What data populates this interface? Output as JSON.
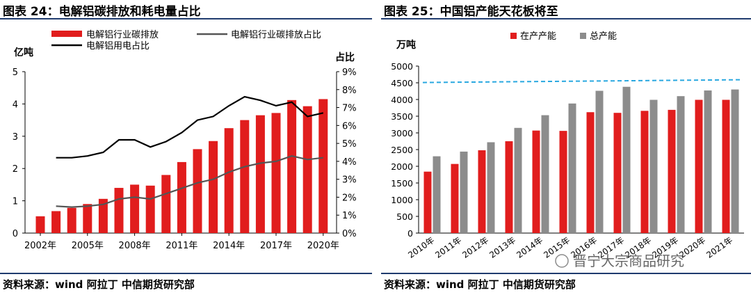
{
  "left": {
    "title": "图表 24：电解铝碳排放和耗电量占比",
    "source": "资料来源：wind 阿拉丁 中信期货研究部"
  },
  "right": {
    "title": "图表 25：中国铝产能天花板将至",
    "source": "资料来源：wind 阿拉丁 中信期货研究部",
    "watermark": "晋宁大宗商品研究"
  },
  "chart_data": [
    {
      "type": "bar+line",
      "title": "电解铝碳排放和耗电量占比",
      "y_left_label": "亿吨",
      "y_right_label": "占比",
      "ylim_left": [
        0,
        5
      ],
      "ylim_right": [
        0,
        9
      ],
      "y_left_ticks": [
        "0",
        "1",
        "2",
        "3",
        "4",
        "5"
      ],
      "y_right_ticks": [
        "0%",
        "1%",
        "2%",
        "3%",
        "4%",
        "5%",
        "6%",
        "7%",
        "8%",
        "9%"
      ],
      "years": [
        2002,
        2003,
        2004,
        2005,
        2006,
        2007,
        2008,
        2009,
        2010,
        2011,
        2012,
        2013,
        2014,
        2015,
        2016,
        2017,
        2018,
        2019,
        2020
      ],
      "x_tick_labels": [
        "2002年",
        "2005年",
        "2008年",
        "2011年",
        "2014年",
        "2017年",
        "2020年"
      ],
      "x_tick_years": [
        2002,
        2005,
        2008,
        2011,
        2014,
        2017,
        2020
      ],
      "legend": [
        "电解铝行业碳排放",
        "电解铝行业碳排放占比",
        "电解铝用电占比"
      ],
      "series": [
        {
          "name": "电解铝行业碳排放",
          "kind": "bar",
          "axis": "left",
          "color": "#e11d1d",
          "values": [
            0.52,
            0.68,
            0.78,
            0.9,
            1.06,
            1.4,
            1.5,
            1.47,
            1.8,
            2.2,
            2.6,
            2.85,
            3.25,
            3.5,
            3.65,
            3.72,
            4.12,
            3.93,
            4.15
          ]
        },
        {
          "name": "电解铝行业碳排放占比",
          "kind": "line",
          "axis": "right",
          "color": "#555555",
          "values": [
            null,
            1.5,
            1.45,
            1.5,
            1.6,
            1.9,
            2.0,
            1.9,
            2.2,
            2.5,
            2.8,
            3.0,
            3.4,
            3.7,
            3.9,
            4.0,
            4.3,
            4.1,
            4.2
          ]
        },
        {
          "name": "电解铝用电占比",
          "kind": "line",
          "axis": "right",
          "color": "#000000",
          "values": [
            null,
            4.2,
            4.2,
            4.3,
            4.5,
            5.2,
            5.2,
            4.8,
            5.1,
            5.6,
            6.3,
            6.5,
            7.1,
            7.6,
            7.4,
            7.1,
            7.3,
            6.5,
            6.7
          ]
        }
      ]
    },
    {
      "type": "bar",
      "title": "中国铝产能天花板将至",
      "ylabel": "万吨",
      "ylim": [
        0,
        5000
      ],
      "y_ticks": [
        "0",
        "500",
        "1000",
        "1500",
        "2000",
        "2500",
        "3000",
        "3500",
        "4000",
        "4500",
        "5000"
      ],
      "categories": [
        "2010年",
        "2011年",
        "2012年",
        "2013年",
        "2014年",
        "2015年",
        "2016年",
        "2017年",
        "2018年",
        "2019年",
        "2020年",
        "2021年"
      ],
      "reference_line": 4550,
      "series": [
        {
          "name": "在产产能",
          "color": "#e11d1d",
          "values": [
            1840,
            2070,
            2480,
            2750,
            3070,
            3060,
            3620,
            3600,
            3660,
            3690,
            3990,
            3990
          ]
        },
        {
          "name": "总产能",
          "color": "#8c8c8c",
          "values": [
            2300,
            2440,
            2720,
            3150,
            3530,
            3880,
            4260,
            4380,
            3990,
            4100,
            4270,
            4300
          ]
        }
      ]
    }
  ]
}
